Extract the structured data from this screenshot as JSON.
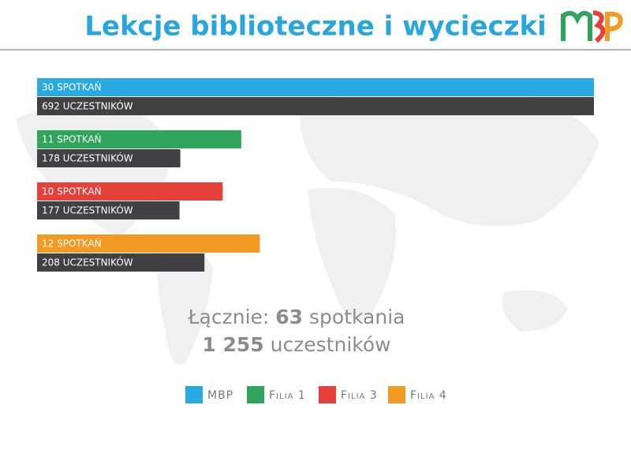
{
  "chart_data": {
    "type": "bar",
    "orientation": "horizontal",
    "title": "Lekcje biblioteczne  i wycieczki",
    "categories": [
      "MBP",
      "Filia 1",
      "Filia 3",
      "Filia 4"
    ],
    "colors": [
      "#29abe2",
      "#2ea55a",
      "#e5403a",
      "#f39a22"
    ],
    "series": [
      {
        "values": [
          30,
          11,
          10,
          12
        ],
        "value_labels": [
          "30 SPOTKAŃ",
          "11 SPOTKAŃ",
          "10 SPOTKAŃ",
          "12 SPOTKAŃ"
        ]
      },
      {
        "color": "#414042",
        "values": [
          692,
          178,
          177,
          208
        ],
        "value_labels": [
          "692 UCZESTNIKÓW",
          "178 UCZESTNIKÓW",
          "177 UCZESTNIKÓW",
          "208 UCZESTNIKÓW"
        ]
      }
    ],
    "totals": {
      "prefix": "Łącznie:",
      "meetings": 63,
      "meetings_suffix": "spotkania",
      "participants": {
        "value": 1255,
        "label": "1 255"
      },
      "participants_suffix": "uczestników"
    }
  }
}
